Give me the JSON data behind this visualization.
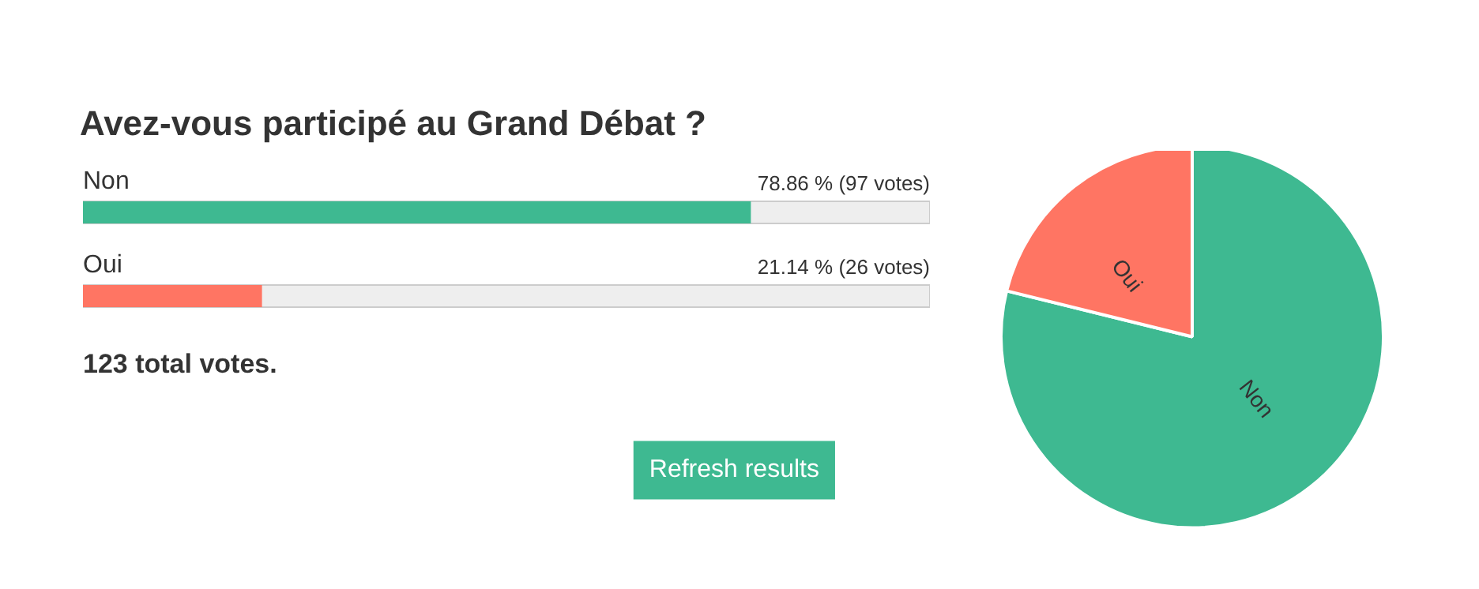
{
  "chart_data": [
    {
      "type": "bar",
      "orientation": "horizontal",
      "title": "Avez-vous participé au Grand Débat ?",
      "categories": [
        "Non",
        "Oui"
      ],
      "values": [
        78.86,
        21.14
      ],
      "colors": [
        "#3eb991",
        "#ff7563"
      ],
      "value_labels": [
        "78.86 % (97 votes)",
        "21.14 % (26 votes)"
      ],
      "xlim": [
        0,
        100
      ],
      "tick_labels": false,
      "annotations": [
        "123 total votes.",
        "Refresh results"
      ]
    },
    {
      "type": "pie",
      "categories": [
        "Non",
        "Oui"
      ],
      "values": [
        78.86,
        21.14
      ],
      "colors": [
        "#3eb991",
        "#ff7563"
      ]
    }
  ]
}
